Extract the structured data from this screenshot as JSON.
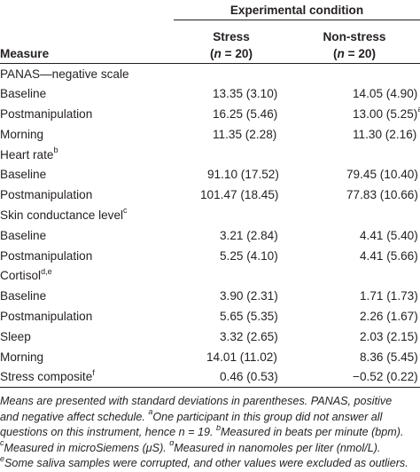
{
  "header": {
    "group_title": "Experimental condition",
    "measure_label": "Measure",
    "col_stress": "Stress",
    "col_nonstress": "Non-stress",
    "n_stress_open": "(",
    "n_stress_var": "n",
    "n_stress_rest": " = 20)",
    "n_nonstress_open": "(",
    "n_nonstress_var": "n",
    "n_nonstress_rest": " = 20)"
  },
  "groups": {
    "panas": {
      "label": "PANAS—negative scale",
      "sup": ""
    },
    "heart": {
      "label": "Heart rate",
      "sup": "b"
    },
    "skin": {
      "label": "Skin conductance level",
      "sup": "c"
    },
    "cortisol": {
      "label": "Cortisol",
      "sup": "d,e"
    }
  },
  "rows": {
    "panas_baseline": {
      "label": "Baseline",
      "stress": "13.35 (3.10)",
      "nonstress": "14.05 (4.90)"
    },
    "panas_post": {
      "label": "Postmanipulation",
      "stress": "16.25 (5.46)",
      "nonstress": "13.00 (5.25)",
      "nonstress_sup": "a"
    },
    "panas_morning": {
      "label": "Morning",
      "stress": "11.35 (2.28)",
      "nonstress": "11.30 (2.16)"
    },
    "hr_baseline": {
      "label": "Baseline",
      "stress": "91.10 (17.52)",
      "nonstress": "79.45 (10.40)"
    },
    "hr_post": {
      "label": "Postmanipulation",
      "stress": "101.47 (18.45)",
      "nonstress": "77.83 (10.66)"
    },
    "skin_baseline": {
      "label": "Baseline",
      "stress": "3.21 (2.84)",
      "nonstress": "4.41 (5.40)"
    },
    "skin_post": {
      "label": "Postmanipulation",
      "stress": "5.25 (4.10)",
      "nonstress": "4.41 (5.66)"
    },
    "cort_baseline": {
      "label": "Baseline",
      "stress": "3.90 (2.31)",
      "nonstress": "1.71 (1.73)"
    },
    "cort_post": {
      "label": "Postmanipulation",
      "stress": "5.65 (5.35)",
      "nonstress": "2.26 (1.67)"
    },
    "cort_sleep": {
      "label": "Sleep",
      "stress": "3.32 (2.65)",
      "nonstress": "2.03 (2.15)"
    },
    "cort_morning": {
      "label": "Morning",
      "stress": "14.01 (11.02)",
      "nonstress": "8.36 (5.45)"
    },
    "composite": {
      "label": "Stress composite",
      "label_sup": "f",
      "stress": "0.46 (0.53)",
      "nonstress": "−0.52 (0.22)"
    }
  },
  "notes": {
    "line1": "Means are presented with standard deviations in parentheses. PANAS, positive",
    "line2a": "and negative affect schedule. ",
    "line2_sup": "a",
    "line2b": "One participant in this group did not answer all",
    "line3a": "questions on this instrument, hence n = 19. ",
    "line3_sup": "b",
    "line3b": "Measured in beats per minute (bpm).",
    "line4_sup1": "c",
    "line4a": "Measured in microSiemens (μS). ",
    "line4_sup2": "d",
    "line4b": "Measured in nanomoles per liter (nmol/L).",
    "line5_sup": "e",
    "line5": "Some saliva samples were corrupted, and other values were excluded as outliers."
  }
}
